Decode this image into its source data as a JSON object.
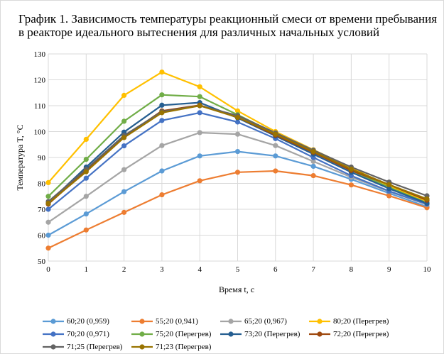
{
  "title": "График 1. Зависимость температуры реакционный смеси от времени пребывания в реакторе идеального вытеснения для различных начальных условий",
  "chart_data": {
    "type": "line",
    "xlabel": "Время t, c",
    "ylabel": "Температура T, °C",
    "xlim": [
      0,
      10
    ],
    "ylim": [
      50,
      130
    ],
    "x_ticks": [
      "0",
      "1",
      "2",
      "3",
      "4",
      "5",
      "6",
      "7",
      "8",
      "9",
      "10"
    ],
    "y_ticks": [
      "50",
      "60",
      "70",
      "80",
      "90",
      "100",
      "110",
      "120",
      "130"
    ],
    "grid": true,
    "legend_position": "bottom",
    "x": [
      0,
      1,
      2,
      3,
      4,
      5,
      6,
      7,
      8,
      9,
      10
    ],
    "series": [
      {
        "name": "60;20 (0,959)",
        "color": "#5b9bd5",
        "values": [
          60,
          68.2,
          76.8,
          84.8,
          90.6,
          92.3,
          90.6,
          86.6,
          81.6,
          76.2,
          71.0
        ]
      },
      {
        "name": "55;20 (0,941)",
        "color": "#ed7d31",
        "values": [
          55,
          62,
          68.8,
          75.6,
          81.0,
          84.3,
          84.8,
          83.0,
          79.4,
          75.2,
          70.6
        ]
      },
      {
        "name": "65;20 (0,967)",
        "color": "#a5a5a5",
        "values": [
          65,
          75,
          85.3,
          94.6,
          99.6,
          99.0,
          94.6,
          88.5,
          82.4,
          76.9,
          71.8
        ]
      },
      {
        "name": "80;20 (Перегрев)",
        "color": "#ffc000",
        "values": [
          80.3,
          97,
          114,
          123,
          117.3,
          108,
          100,
          93,
          86,
          79,
          73
        ]
      },
      {
        "name": "70;20 (0,971)",
        "color": "#4472c4",
        "values": [
          70,
          82,
          94.5,
          104.3,
          107.3,
          103.7,
          97.3,
          90,
          83,
          77,
          72
        ]
      },
      {
        "name": "75;20 (Перегрев)",
        "color": "#70ad47",
        "values": [
          75,
          89.3,
          104,
          114.2,
          113.5,
          106.5,
          99.2,
          92,
          85,
          78.5,
          72.5
        ]
      },
      {
        "name": "73;20 (Перегрев)",
        "color": "#255e91",
        "values": [
          72.5,
          86.3,
          99.8,
          110.2,
          111.2,
          105.3,
          98.3,
          91.3,
          84.3,
          78,
          72.3
        ]
      },
      {
        "name": "72;20 (Перегрев)",
        "color": "#9e480e",
        "values": [
          72,
          85,
          98,
          108,
          110.2,
          105.5,
          98.6,
          92,
          85,
          79.5,
          73.5
        ]
      },
      {
        "name": "71;25 (Перегрев)",
        "color": "#636363",
        "values": [
          73,
          85.5,
          98.5,
          107.7,
          110,
          106.2,
          99.5,
          92.8,
          86.3,
          80.5,
          75.2
        ]
      },
      {
        "name": "71;23 (Перегрев)",
        "color": "#997300",
        "values": [
          72.3,
          84.5,
          97.7,
          107.3,
          110,
          105.5,
          99,
          92.3,
          85.5,
          79.5,
          74
        ]
      }
    ]
  }
}
